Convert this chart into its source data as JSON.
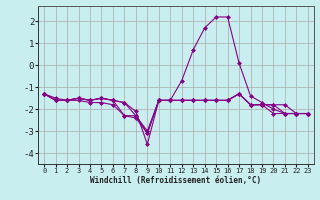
{
  "background_color": "#c8eef0",
  "grid_color": "#aaaaaa",
  "line_color": "#880088",
  "marker": "D",
  "marker_size": 2.0,
  "xlabel": "Windchill (Refroidissement éolien,°C)",
  "xlim": [
    -0.5,
    23.5
  ],
  "ylim": [
    -4.5,
    2.7
  ],
  "yticks": [
    -4,
    -3,
    -2,
    -1,
    0,
    1,
    2
  ],
  "xticks": [
    0,
    1,
    2,
    3,
    4,
    5,
    6,
    7,
    8,
    9,
    10,
    11,
    12,
    13,
    14,
    15,
    16,
    17,
    18,
    19,
    20,
    21,
    22,
    23
  ],
  "series": [
    [
      0,
      1,
      2,
      3,
      4,
      5,
      6,
      7,
      8,
      9,
      10,
      11,
      12,
      13,
      14,
      15,
      16,
      17,
      18,
      19,
      20,
      21,
      22,
      23
    ],
    [
      -1.3,
      -1.6,
      -1.6,
      -1.5,
      -1.6,
      -1.5,
      -1.6,
      -1.7,
      -2.1,
      -3.6,
      -1.6,
      -1.6,
      -1.6,
      -1.6,
      -1.6,
      -1.6,
      -1.6,
      -1.3,
      -1.8,
      -1.8,
      -1.8,
      -1.8,
      -2.2,
      -2.2
    ],
    [
      -1.3,
      -1.6,
      -1.6,
      -1.5,
      -1.6,
      -1.5,
      -1.6,
      -1.7,
      -2.3,
      -3.1,
      -1.6,
      -1.6,
      -1.6,
      -1.6,
      -1.6,
      -1.6,
      -1.6,
      -1.3,
      -1.8,
      -1.8,
      -1.8,
      -2.2,
      -2.2,
      -2.2
    ],
    [
      -1.3,
      -1.6,
      -1.6,
      -1.5,
      -1.6,
      -1.5,
      -1.6,
      -2.3,
      -2.3,
      -3.0,
      -1.6,
      -1.6,
      -1.6,
      -1.6,
      -1.6,
      -1.6,
      -1.6,
      -1.3,
      -1.8,
      -1.8,
      -2.2,
      -2.2,
      -2.2,
      -2.2
    ],
    [
      -1.3,
      -1.5,
      -1.6,
      -1.6,
      -1.7,
      -1.7,
      -1.8,
      -2.3,
      -2.4,
      -3.1,
      -1.6,
      -1.6,
      -0.7,
      0.7,
      1.7,
      2.2,
      2.2,
      0.1,
      -1.4,
      -1.7,
      -2.0,
      -2.2,
      -2.2,
      -2.2
    ]
  ]
}
